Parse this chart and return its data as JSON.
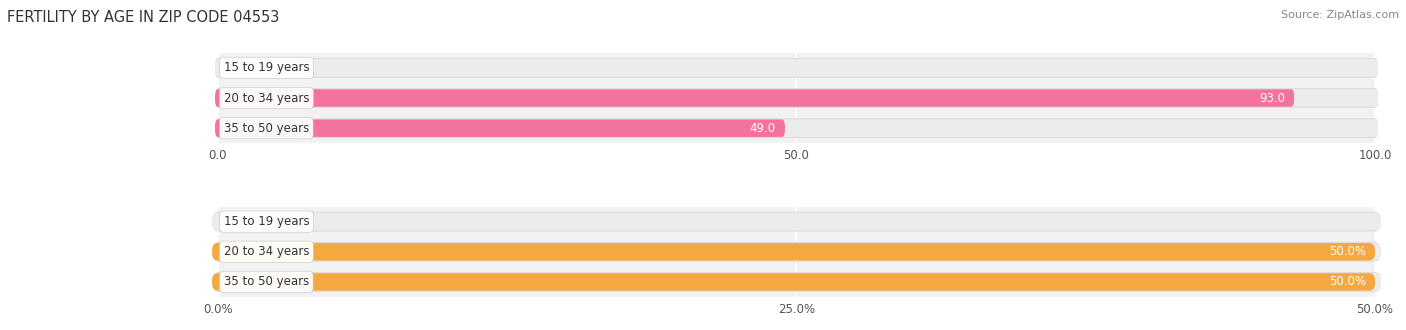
{
  "title": "FERTILITY BY AGE IN ZIP CODE 04553",
  "source": "Source: ZipAtlas.com",
  "top_chart": {
    "categories": [
      "15 to 19 years",
      "20 to 34 years",
      "35 to 50 years"
    ],
    "values": [
      0.0,
      93.0,
      49.0
    ],
    "max_value": 100.0,
    "xticks": [
      0.0,
      50.0,
      100.0
    ],
    "xtick_labels": [
      "0.0",
      "50.0",
      "100.0"
    ],
    "bar_color": "#F472A0",
    "bar_bg_color": "#ECECEC",
    "border_color": "#DDDDDD"
  },
  "bottom_chart": {
    "categories": [
      "15 to 19 years",
      "20 to 34 years",
      "35 to 50 years"
    ],
    "values": [
      0.0,
      50.0,
      50.0
    ],
    "max_value": 50.0,
    "xticks": [
      0.0,
      25.0,
      50.0
    ],
    "xtick_labels": [
      "0.0%",
      "25.0%",
      "50.0%"
    ],
    "bar_color": "#F5A840",
    "bar_bg_color": "#ECECEC",
    "border_color": "#DDDDDD"
  },
  "bg_color": "#FFFFFF",
  "axes_bg_color": "#F2F2F2",
  "title_fontsize": 10.5,
  "label_fontsize": 8.5,
  "tick_fontsize": 8.5,
  "category_fontsize": 8.5,
  "source_fontsize": 8
}
